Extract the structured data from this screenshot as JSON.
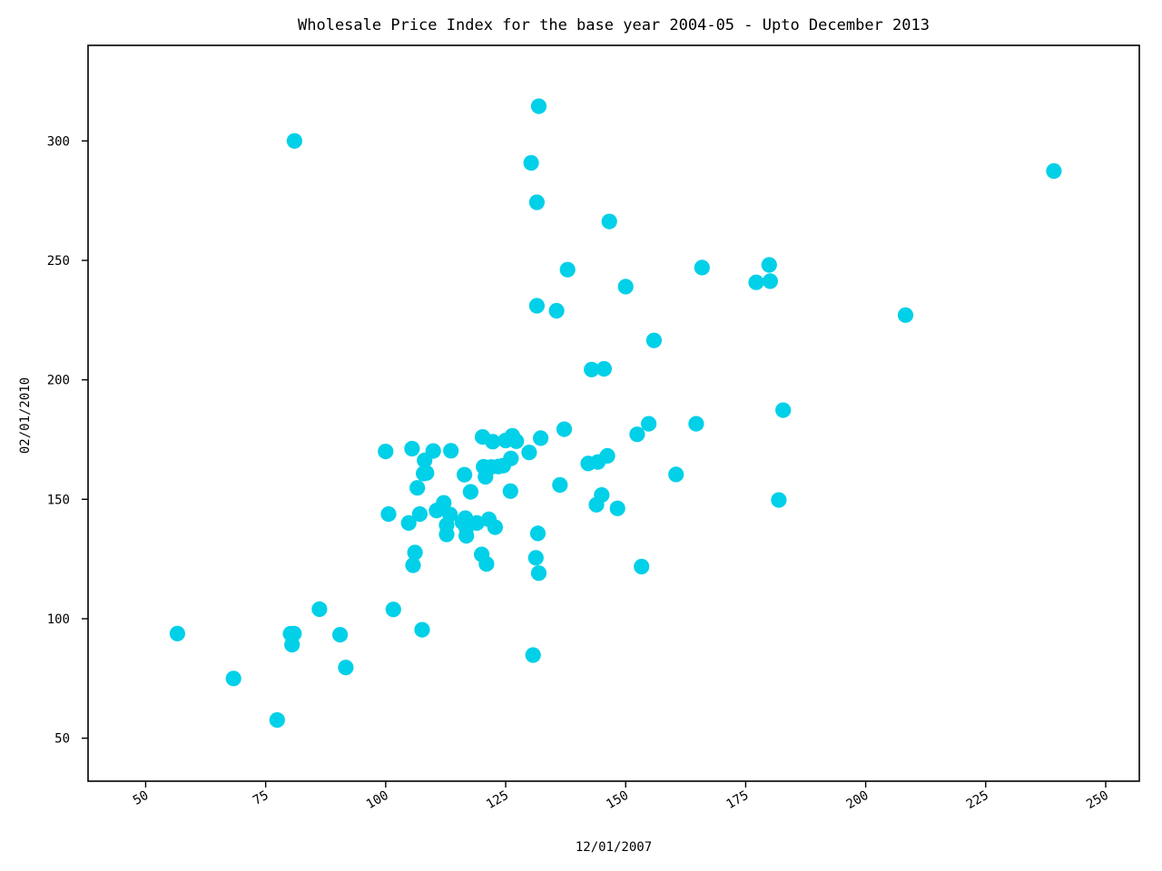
{
  "chart_data": {
    "type": "scatter",
    "title": "Wholesale Price Index for the base year 2004-05 - Upto December 2013",
    "xlabel": "12/01/2007",
    "ylabel": "02/01/2010",
    "xlim": [
      38,
      257
    ],
    "ylim": [
      32,
      340
    ],
    "xticks": [
      50,
      75,
      100,
      125,
      150,
      175,
      200,
      225,
      250
    ],
    "yticks": [
      50,
      100,
      150,
      200,
      250,
      300
    ],
    "grid": false,
    "marker_color": "#00d0e8",
    "points": [
      [
        56.6,
        93.8
      ],
      [
        68.3,
        75.0
      ],
      [
        77.4,
        57.6
      ],
      [
        80.2,
        93.7
      ],
      [
        80.5,
        89.1
      ],
      [
        80.9,
        93.8
      ],
      [
        81.0,
        300.0
      ],
      [
        86.2,
        104.0
      ],
      [
        90.5,
        93.3
      ],
      [
        91.7,
        79.6
      ],
      [
        100.0,
        170.0
      ],
      [
        100.6,
        143.8
      ],
      [
        101.6,
        103.9
      ],
      [
        104.8,
        140.1
      ],
      [
        105.5,
        171.2
      ],
      [
        105.7,
        122.4
      ],
      [
        106.1,
        127.7
      ],
      [
        106.6,
        154.8
      ],
      [
        107.1,
        143.8
      ],
      [
        107.6,
        95.4
      ],
      [
        107.9,
        160.8
      ],
      [
        108.1,
        166.3
      ],
      [
        108.5,
        161.0
      ],
      [
        109.9,
        170.2
      ],
      [
        110.6,
        145.3
      ],
      [
        112.1,
        148.5
      ],
      [
        112.7,
        139.2
      ],
      [
        112.7,
        135.3
      ],
      [
        113.4,
        143.6
      ],
      [
        113.6,
        170.3
      ],
      [
        116.0,
        140.4
      ],
      [
        116.4,
        160.3
      ],
      [
        116.6,
        142.1
      ],
      [
        116.8,
        134.7
      ],
      [
        116.8,
        138.0
      ],
      [
        117.7,
        153.1
      ],
      [
        119.0,
        140.1
      ],
      [
        120.0,
        126.9
      ],
      [
        120.2,
        176.1
      ],
      [
        120.4,
        163.6
      ],
      [
        120.8,
        159.4
      ],
      [
        121.0,
        122.9
      ],
      [
        121.5,
        141.6
      ],
      [
        122.0,
        163.5
      ],
      [
        122.3,
        174.1
      ],
      [
        122.8,
        138.3
      ],
      [
        123.5,
        163.7
      ],
      [
        124.5,
        164.1
      ],
      [
        125.0,
        174.6
      ],
      [
        126.0,
        153.4
      ],
      [
        126.1,
        167.1
      ],
      [
        126.4,
        176.6
      ],
      [
        127.2,
        174.3
      ],
      [
        129.9,
        169.6
      ],
      [
        130.3,
        290.8
      ],
      [
        130.7,
        84.8
      ],
      [
        131.3,
        125.5
      ],
      [
        131.5,
        231.0
      ],
      [
        131.5,
        274.3
      ],
      [
        131.7,
        135.7
      ],
      [
        131.9,
        119.1
      ],
      [
        131.9,
        314.5
      ],
      [
        132.3,
        175.6
      ],
      [
        135.6,
        228.9
      ],
      [
        136.3,
        156.0
      ],
      [
        137.2,
        179.3
      ],
      [
        137.9,
        246.1
      ],
      [
        142.2,
        165.0
      ],
      [
        142.9,
        204.3
      ],
      [
        143.9,
        147.7
      ],
      [
        144.2,
        165.6
      ],
      [
        145.0,
        151.8
      ],
      [
        145.5,
        204.6
      ],
      [
        146.2,
        168.2
      ],
      [
        146.6,
        266.3
      ],
      [
        148.3,
        146.2
      ],
      [
        150.0,
        239.0
      ],
      [
        152.4,
        177.2
      ],
      [
        153.3,
        121.8
      ],
      [
        154.8,
        181.6
      ],
      [
        155.9,
        216.5
      ],
      [
        160.5,
        160.4
      ],
      [
        164.7,
        181.6
      ],
      [
        165.9,
        247.0
      ],
      [
        177.2,
        240.8
      ],
      [
        179.9,
        248.1
      ],
      [
        180.1,
        241.3
      ],
      [
        181.9,
        149.7
      ],
      [
        182.8,
        187.3
      ],
      [
        208.3,
        227.1
      ],
      [
        239.2,
        287.4
      ]
    ]
  }
}
